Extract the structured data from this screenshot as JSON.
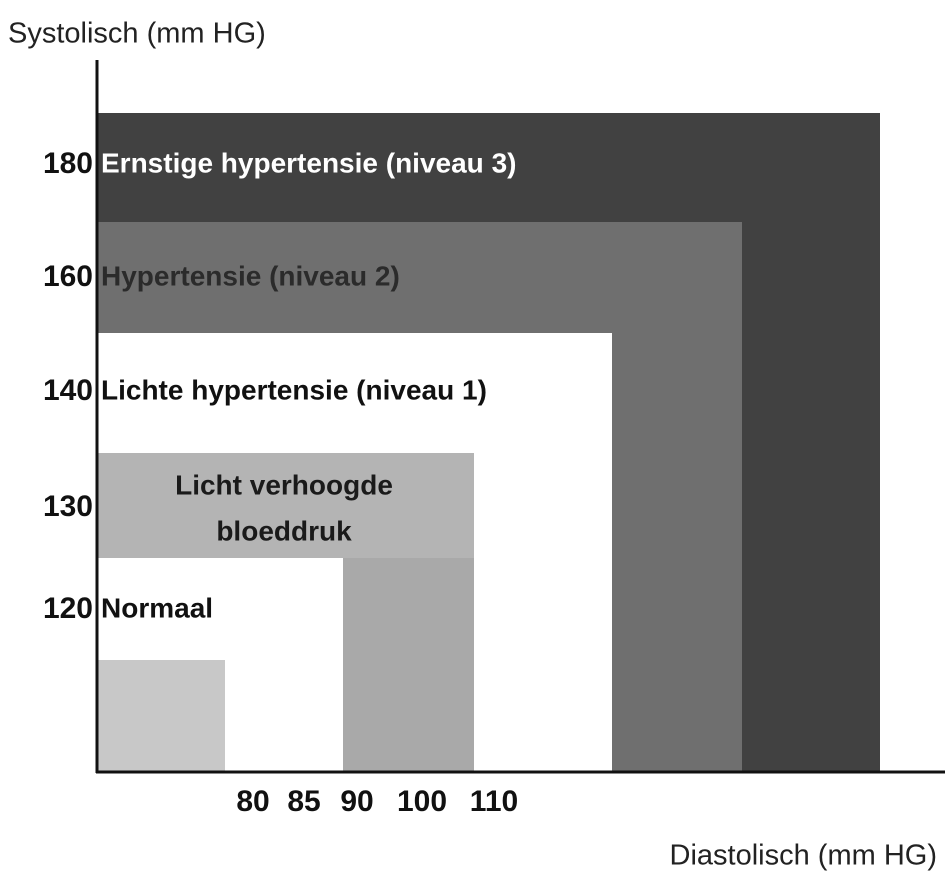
{
  "axes": {
    "y_title": "Systolisch (mm HG)",
    "x_title": "Diastolisch (mm HG)",
    "y_tick_labels": [
      "180",
      "160",
      "140",
      "130",
      "120"
    ],
    "x_tick_labels": [
      "80",
      "85",
      "90",
      "100",
      "110"
    ]
  },
  "regions": [
    {
      "label": "Ernstige hypertensie (niveau 3)"
    },
    {
      "label": "Hypertensie (niveau 2)"
    },
    {
      "label": "Lichte hypertensie (niveau 1)"
    },
    {
      "label_lines": [
        "Licht verhoogde",
        "bloeddruk"
      ]
    },
    {
      "label": "Normaal"
    }
  ]
}
